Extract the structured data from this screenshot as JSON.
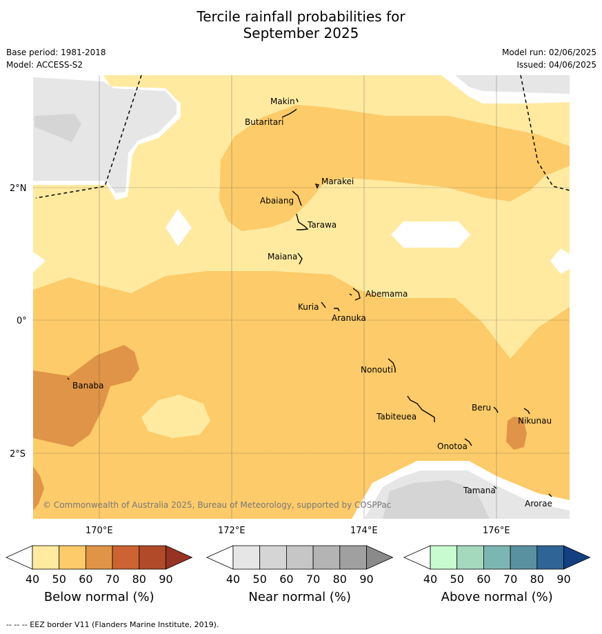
{
  "title_line1": "Tercile rainfall probabilities for",
  "title_line2": "September 2025",
  "base_period": "Base period: 1981-2018",
  "model": "Model: ACCESS-S2",
  "model_run": "Model run: 02/06/2025",
  "issued": "Issued: 04/06/2025",
  "copyright": "© Commonwealth of Australia 2025, Bureau of Meteorology, supported by COSPPac",
  "footnote": "--  --  -- EEZ border V11 (Flanders Marine Institute, 2019).",
  "lat_ticks": [
    "2°N",
    "0°",
    "2°S"
  ],
  "lon_ticks": [
    "170°E",
    "172°E",
    "174°E",
    "176°E"
  ],
  "places": [
    "Makin",
    "Butaritari",
    "Marakei",
    "Abaiang",
    "Tarawa",
    "Maiana",
    "Abemama",
    "Kuria",
    "Aranuka",
    "Banaba",
    "Nonouti",
    "Beru",
    "Tabiteuea",
    "Nikunau",
    "Onotoa",
    "Tamana",
    "Arorae"
  ],
  "colorbars": [
    {
      "label": "Below normal (%)",
      "ticks": [
        "40",
        "50",
        "60",
        "70",
        "80",
        "90"
      ],
      "colors": [
        "#ffeaa0",
        "#fdcb69",
        "#e09447",
        "#cc6333",
        "#b04a28",
        "#963322"
      ]
    },
    {
      "label": "Near normal (%)",
      "ticks": [
        "40",
        "50",
        "60",
        "70",
        "80",
        "90"
      ],
      "colors": [
        "#e6e6e6",
        "#d5d5d5",
        "#c6c6c6",
        "#b4b4b4",
        "#a0a0a0",
        "#8a8a8a"
      ]
    },
    {
      "label": "Above normal (%)",
      "ticks": [
        "40",
        "50",
        "60",
        "70",
        "80",
        "90"
      ],
      "colors": [
        "#c8fcd0",
        "#a4d9be",
        "#7cb6b2",
        "#5a91a0",
        "#2f6497",
        "#143f80"
      ]
    }
  ]
}
